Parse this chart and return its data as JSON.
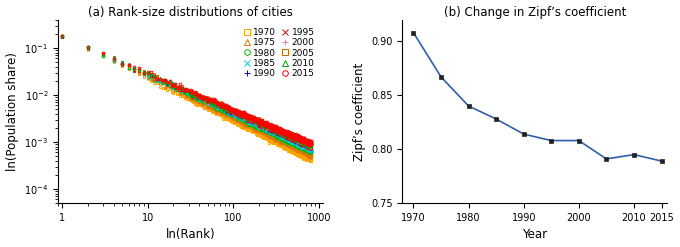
{
  "panel_a_title": "(a) Rank-size distributions of cities",
  "panel_b_title": "(b) Change in Zipf’s coefficient",
  "xlabel_a": "ln(Rank)",
  "ylabel_a": "ln(Population share)",
  "xlabel_b": "Year",
  "ylabel_b": "Zipf’s coefficient",
  "years": [
    1970,
    1975,
    1980,
    1985,
    1990,
    1995,
    2000,
    2005,
    2010,
    2015
  ],
  "zipf_values": [
    0.908,
    0.867,
    0.84,
    0.828,
    0.814,
    0.808,
    0.808,
    0.791,
    0.795,
    0.789
  ],
  "series_info": [
    {
      "year": 1970,
      "marker": "s",
      "color": "#FFA500",
      "mfc": "none",
      "label": "1970"
    },
    {
      "year": 1975,
      "marker": "^",
      "color": "#E07800",
      "mfc": "none",
      "label": "1975"
    },
    {
      "year": 1980,
      "marker": "o",
      "color": "#00BB00",
      "mfc": "none",
      "label": "1980"
    },
    {
      "year": 1985,
      "marker": "x",
      "color": "#00CCCC",
      "mfc": "#00CCCC",
      "label": "1985"
    },
    {
      "year": 1990,
      "marker": "+",
      "color": "#0000EE",
      "mfc": "#0000EE",
      "label": "1990"
    },
    {
      "year": 1995,
      "marker": "x",
      "color": "#CC0000",
      "mfc": "#CC0000",
      "label": "1995"
    },
    {
      "year": 2000,
      "marker": "+",
      "color": "#FF69B4",
      "mfc": "#FF69B4",
      "label": "2000"
    },
    {
      "year": 2005,
      "marker": "s",
      "color": "#CC6600",
      "mfc": "none",
      "label": "2005"
    },
    {
      "year": 2010,
      "marker": "^",
      "color": "#00AA00",
      "mfc": "none",
      "label": "2010"
    },
    {
      "year": 2015,
      "marker": "o",
      "color": "#FF0000",
      "mfc": "none",
      "label": "2015"
    }
  ],
  "ylim_b": [
    0.75,
    0.92
  ],
  "yticks_b": [
    0.75,
    0.8,
    0.85,
    0.9
  ],
  "xticks_b": [
    1970,
    1980,
    1990,
    2000,
    2010,
    2015
  ],
  "line_color_b": "#2E5FAB",
  "marker_color_b": "#222222",
  "bg_color": "#FFFFFF",
  "n_cities": 800,
  "base_share": 0.18
}
